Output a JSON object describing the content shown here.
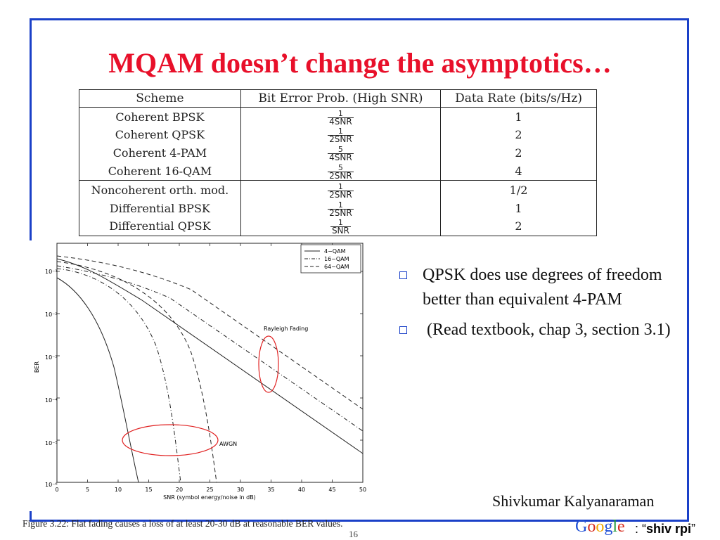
{
  "slide": {
    "title": "MQAM doesn’t change the asymptotics…",
    "page_number": "16",
    "author": "Shivkumar Kalyanaraman",
    "google_logo": "Google",
    "search_prefix": ": “",
    "search_query": "shiv rpi",
    "search_suffix": "”",
    "caption": "Figure 3.22: Flat fading causes a loss of at least 20-30 dB at reasonable BER values."
  },
  "table": {
    "headers": [
      "Scheme",
      "Bit Error Prob. (High SNR)",
      "Data Rate (bits/s/Hz)"
    ],
    "rows": [
      {
        "scheme": "Coherent BPSK",
        "num": "1",
        "den": "4SNR",
        "rate": "1"
      },
      {
        "scheme": "Coherent QPSK",
        "num": "1",
        "den": "2SNR",
        "rate": "2"
      },
      {
        "scheme": "Coherent 4-PAM",
        "num": "5",
        "den": "4SNR",
        "rate": "2"
      },
      {
        "scheme": "Coherent 16-QAM",
        "num": "5",
        "den": "2SNR",
        "rate": "4"
      },
      {
        "scheme": "Noncoherent orth. mod.",
        "num": "1",
        "den": "2SNR",
        "rate": "1/2"
      },
      {
        "scheme": "Differential BPSK",
        "num": "1",
        "den": "2SNR",
        "rate": "1"
      },
      {
        "scheme": "Differential QPSK",
        "num": "1",
        "den": "SNR",
        "rate": "2"
      }
    ]
  },
  "bullets": [
    "QPSK does use degrees of freedom better than equivalent 4-PAM",
    " (Read textbook, chap 3, section 3.1)"
  ],
  "plot": {
    "xlabel": "SNR (symbol energy/noise in dB)",
    "ylabel": "BER",
    "xticks": [
      "0",
      "5",
      "10",
      "15",
      "20",
      "25",
      "30",
      "35",
      "40",
      "45",
      "50"
    ],
    "yticks": [
      "10⁻¹",
      "10⁻²",
      "10⁻³",
      "10⁻⁴",
      "10⁻⁵",
      "10⁻⁶"
    ],
    "legend": [
      "4−QAM",
      "16−QAM",
      "64−QAM"
    ],
    "annotations": {
      "rayleigh": "Rayleigh Fading",
      "awgn": "AWGN"
    },
    "colors": {
      "ellipse": "#e02020",
      "curve": "#222222"
    }
  }
}
